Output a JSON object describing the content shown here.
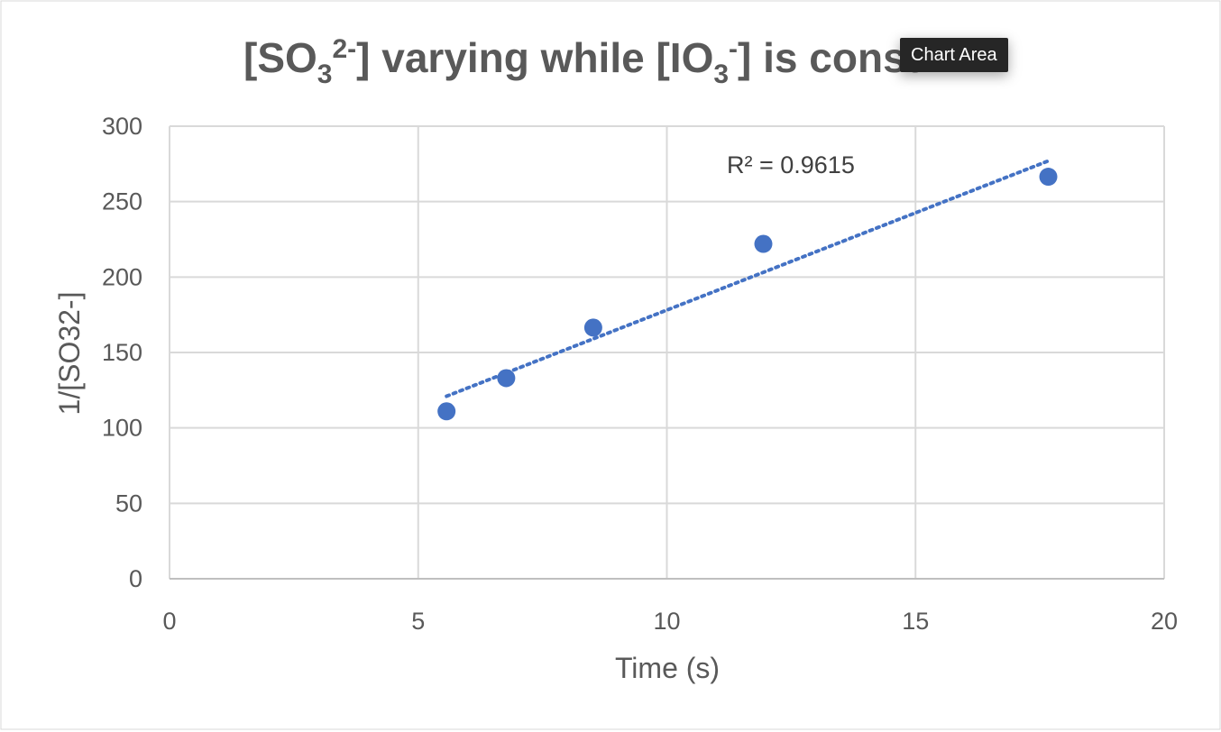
{
  "chart_data": {
    "type": "scatter",
    "title": {
      "prefix": "[SO",
      "sub1": "3",
      "sup1": "2-",
      "middle": "] varying while [IO",
      "sub2": "3",
      "sup2": "-",
      "suffix": "] is const"
    },
    "xlabel": "Time (s)",
    "ylabel": "1/[SO32-]",
    "xlim": [
      0,
      20
    ],
    "ylim": [
      0,
      300
    ],
    "xticks": [
      0,
      5,
      10,
      15,
      20
    ],
    "yticks": [
      0,
      50,
      100,
      150,
      200,
      250,
      300
    ],
    "grid": true,
    "series": [
      {
        "x": [
          5.57,
          6.77,
          8.52,
          11.94,
          17.67
        ],
        "y": [
          111,
          133,
          166.5,
          222,
          266.5
        ]
      }
    ],
    "trendline": {
      "type": "linear",
      "x_range": [
        5.57,
        17.67
      ],
      "y_range": [
        121,
        277
      ],
      "style": "dotted",
      "r_squared_label": "R² = 0.9615"
    },
    "colors": {
      "marker": "#4472C4",
      "trendline": "#4472C4",
      "grid": "#d9d9d9",
      "text": "#595959"
    }
  },
  "tooltip": {
    "label": "Chart Area"
  }
}
